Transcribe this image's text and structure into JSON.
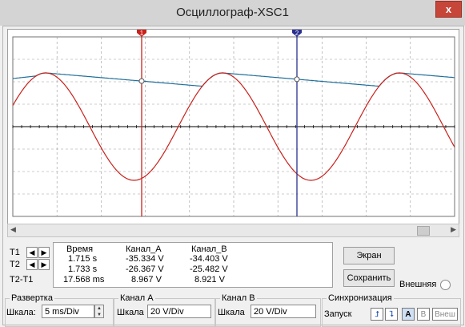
{
  "window": {
    "title": "Осциллограф-XSC1",
    "close_label": "x"
  },
  "cursors": {
    "t1_marker": "1",
    "t2_marker": "2"
  },
  "measurements": {
    "headers": {
      "time": "Время",
      "channel_a": "Канал_A",
      "channel_b": "Канал_B"
    },
    "rows": [
      {
        "label": "T1",
        "time": "1.715 s",
        "a": "-35.334 V",
        "b": "-34.403 V"
      },
      {
        "label": "T2",
        "time": "1.733 s",
        "a": "-26.367 V",
        "b": "-25.482 V"
      },
      {
        "label": "T2-T1",
        "time": "17.568 ms",
        "a": "8.967 V",
        "b": "8.921 V"
      }
    ]
  },
  "buttons": {
    "screen": "Экран",
    "save": "Сохранить",
    "external": "Внешняя"
  },
  "sweep": {
    "group_label": "Развертка",
    "scale_label": "Шкала:",
    "scale_value": "5 ms/Div"
  },
  "channel_a": {
    "group_label": "Канал A",
    "scale_label": "Шкала",
    "scale_value": "20  V/Div"
  },
  "channel_b": {
    "group_label": "Канал B",
    "scale_label": "Шкала",
    "scale_value": "20  V/Div"
  },
  "sync": {
    "group_label": "Синхронизация",
    "trigger_label": "Запуск",
    "a_label": "A",
    "b_label": "B",
    "ext_label": "Внеш"
  },
  "colors": {
    "channel_a": "#c8221c",
    "channel_b": "#1f6e9a",
    "cursor_t1": "#c8221c",
    "cursor_t2": "#2a2f8f",
    "grid": "#9a9a9a"
  }
}
